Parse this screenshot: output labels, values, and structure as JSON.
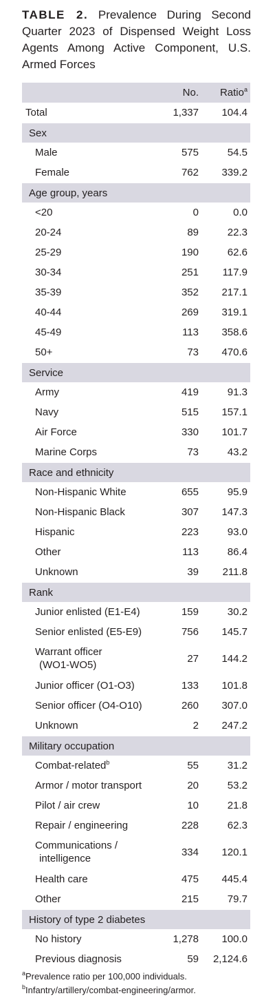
{
  "title": {
    "label": "TABLE 2.",
    "text": "Prevalence During Second Quarter 2023 of Dispensed Weight Loss Agents Among Active Component, U.S. Armed Forces"
  },
  "table": {
    "header": {
      "no": "No.",
      "ratio": "Ratio",
      "ratio_sup": "a"
    },
    "total": {
      "label": "Total",
      "no": "1,337",
      "ratio": "104.4"
    },
    "sections": [
      {
        "name": "Sex",
        "rows": [
          {
            "label": "Male",
            "no": "575",
            "ratio": "54.5"
          },
          {
            "label": "Female",
            "no": "762",
            "ratio": "339.2"
          }
        ]
      },
      {
        "name": "Age group, years",
        "rows": [
          {
            "label": "<20",
            "no": "0",
            "ratio": "0.0"
          },
          {
            "label": "20-24",
            "no": "89",
            "ratio": "22.3"
          },
          {
            "label": "25-29",
            "no": "190",
            "ratio": "62.6"
          },
          {
            "label": "30-34",
            "no": "251",
            "ratio": "117.9"
          },
          {
            "label": "35-39",
            "no": "352",
            "ratio": "217.1"
          },
          {
            "label": "40-44",
            "no": "269",
            "ratio": "319.1"
          },
          {
            "label": "45-49",
            "no": "113",
            "ratio": "358.6"
          },
          {
            "label": "50+",
            "no": "73",
            "ratio": "470.6"
          }
        ]
      },
      {
        "name": "Service",
        "rows": [
          {
            "label": "Army",
            "no": "419",
            "ratio": "91.3"
          },
          {
            "label": "Navy",
            "no": "515",
            "ratio": "157.1"
          },
          {
            "label": "Air Force",
            "no": "330",
            "ratio": "101.7"
          },
          {
            "label": "Marine Corps",
            "no": "73",
            "ratio": "43.2"
          }
        ]
      },
      {
        "name": "Race and ethnicity",
        "rows": [
          {
            "label": "Non-Hispanic White",
            "no": "655",
            "ratio": "95.9"
          },
          {
            "label": "Non-Hispanic Black",
            "no": "307",
            "ratio": "147.3"
          },
          {
            "label": "Hispanic",
            "no": "223",
            "ratio": "93.0"
          },
          {
            "label": "Other",
            "no": "113",
            "ratio": "86.4"
          },
          {
            "label": "Unknown",
            "no": "39",
            "ratio": "211.8"
          }
        ]
      },
      {
        "name": "Rank",
        "rows": [
          {
            "label": "Junior enlisted (E1-E4)",
            "no": "159",
            "ratio": "30.2"
          },
          {
            "label": "Senior enlisted (E5-E9)",
            "no": "756",
            "ratio": "145.7"
          },
          {
            "label": "Warrant officer",
            "label_cont": "(WO1-WO5)",
            "no": "27",
            "ratio": "144.2"
          },
          {
            "label": "Junior officer (O1-O3)",
            "no": "133",
            "ratio": "101.8"
          },
          {
            "label": "Senior officer (O4-O10)",
            "no": "260",
            "ratio": "307.0"
          },
          {
            "label": "Unknown",
            "no": "2",
            "ratio": "247.2"
          }
        ]
      },
      {
        "name": "Military occupation",
        "rows": [
          {
            "label": "Combat-related",
            "sup": "b",
            "no": "55",
            "ratio": "31.2"
          },
          {
            "label": "Armor / motor transport",
            "no": "20",
            "ratio": "53.2"
          },
          {
            "label": "Pilot / air crew",
            "no": "10",
            "ratio": "21.8"
          },
          {
            "label": "Repair / engineering",
            "no": "228",
            "ratio": "62.3"
          },
          {
            "label": "Communications /",
            "label_cont": "intelligence",
            "no": "334",
            "ratio": "120.1"
          },
          {
            "label": "Health care",
            "no": "475",
            "ratio": "445.4"
          },
          {
            "label": "Other",
            "no": "215",
            "ratio": "79.7"
          }
        ]
      },
      {
        "name": "History of type 2 diabetes",
        "rows": [
          {
            "label": "No history",
            "no": "1,278",
            "ratio": "100.0"
          },
          {
            "label": "Previous diagnosis",
            "no": "59",
            "ratio": "2,124.6"
          }
        ]
      }
    ]
  },
  "footnotes": [
    {
      "mark": "a",
      "text": "Prevalence ratio per 100,000 individuals."
    },
    {
      "mark": "b",
      "text": "Infantry/artillery/combat-engineering/armor."
    }
  ]
}
